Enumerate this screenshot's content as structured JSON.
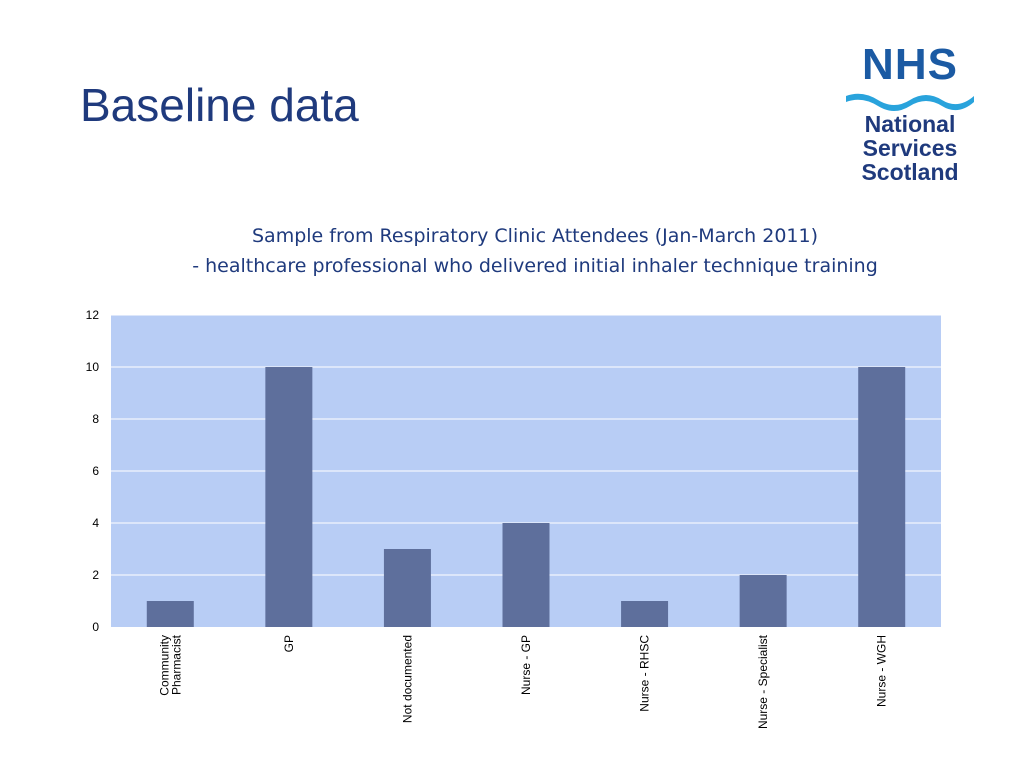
{
  "slide": {
    "title": "Baseline data"
  },
  "logo": {
    "nhs": "NHS",
    "line1": "National",
    "line2": "Services",
    "line3": "Scotland"
  },
  "colors": {
    "title": "#1f3a7d",
    "plot_bg": "#b8cdf5",
    "bar": "#5e6f9c",
    "gridline": "#ffffff",
    "logo_blue": "#1b5aa3",
    "wave": "#29a3dc"
  },
  "chart_data": {
    "type": "bar",
    "title": "Sample from Respiratory Clinic Attendees  (Jan-March 2011)",
    "subtitle": "- healthcare professional who delivered initial inhaler technique training",
    "categories": [
      "Community Pharmacist",
      "GP",
      "Not documented",
      "Nurse - GP",
      "Nurse - RHSC",
      "Nurse - Specialist",
      "Nurse - WGH"
    ],
    "values": [
      1,
      10,
      3,
      4,
      1,
      2,
      10
    ],
    "ylim": [
      0,
      12
    ],
    "yticks": [
      "0",
      "2",
      "4",
      "6",
      "8",
      "10",
      "12"
    ],
    "grid": true,
    "xlabel": "",
    "ylabel": ""
  }
}
